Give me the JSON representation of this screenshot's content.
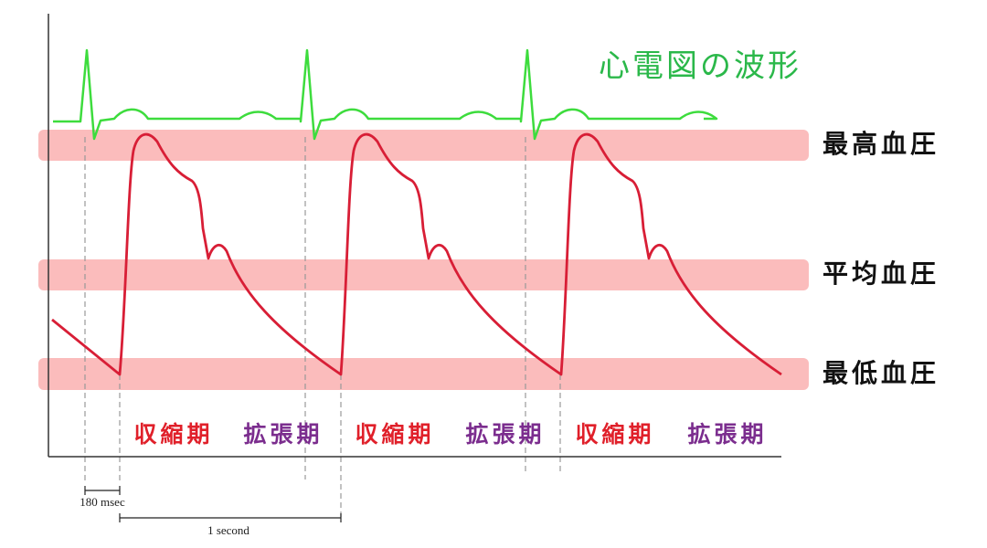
{
  "ecg_label": "心電図の波形",
  "pressure_levels": [
    "最高血圧",
    "平均血圧",
    "最低血圧"
  ],
  "phases": [
    "収縮期",
    "拡張期",
    "収縮期",
    "拡張期",
    "収縮期",
    "拡張期"
  ],
  "timing": [
    "180 msec",
    "1 second"
  ]
}
